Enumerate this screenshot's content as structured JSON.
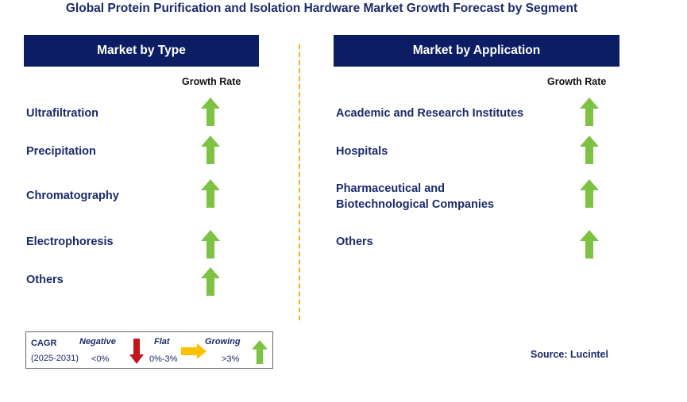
{
  "title": "Global Protein Purification and Isolation Hardware Market Growth Forecast by Segment",
  "colors": {
    "header_bg": "#0c1d63",
    "up_arrow": "#7dc242",
    "down_arrow": "#c0161c",
    "flat_arrow": "#ffc000",
    "divider": "#f5b21c",
    "text": "#1b2a6b"
  },
  "chart_data": {
    "type": "table",
    "panels": [
      {
        "header": "Market by Type",
        "column_label": "Growth Rate",
        "rows": [
          {
            "label": "Ultrafiltration",
            "trend": "growing",
            "icon": "up-arrow-icon"
          },
          {
            "label": "Precipitation",
            "trend": "growing",
            "icon": "up-arrow-icon"
          },
          {
            "label": "Chromatography",
            "trend": "growing",
            "icon": "up-arrow-icon"
          },
          {
            "label": "Electrophoresis",
            "trend": "growing",
            "icon": "up-arrow-icon"
          },
          {
            "label": "Others",
            "trend": "growing",
            "icon": "up-arrow-icon"
          }
        ]
      },
      {
        "header": "Market by Application",
        "column_label": "Growth Rate",
        "rows": [
          {
            "label": "Academic and Research Institutes",
            "trend": "growing",
            "icon": "up-arrow-icon"
          },
          {
            "label": "Hospitals",
            "trend": "growing",
            "icon": "up-arrow-icon"
          },
          {
            "label_lines": [
              "Pharmaceutical and",
              "Biotechnological Companies"
            ],
            "trend": "growing",
            "icon": "up-arrow-icon"
          },
          {
            "label": "Others",
            "trend": "growing",
            "icon": "up-arrow-icon"
          }
        ]
      }
    ]
  },
  "legend": {
    "cagr": "CAGR",
    "period": "(2025-2031)",
    "negative": {
      "label": "Negative",
      "range": "<0%",
      "icon": "down-arrow-icon"
    },
    "flat": {
      "label": "Flat",
      "range": "0%-3%",
      "icon": "right-arrow-icon"
    },
    "growing": {
      "label": "Growing",
      "range": ">3%",
      "icon": "up-arrow-icon"
    }
  },
  "source": "Source: Lucintel"
}
